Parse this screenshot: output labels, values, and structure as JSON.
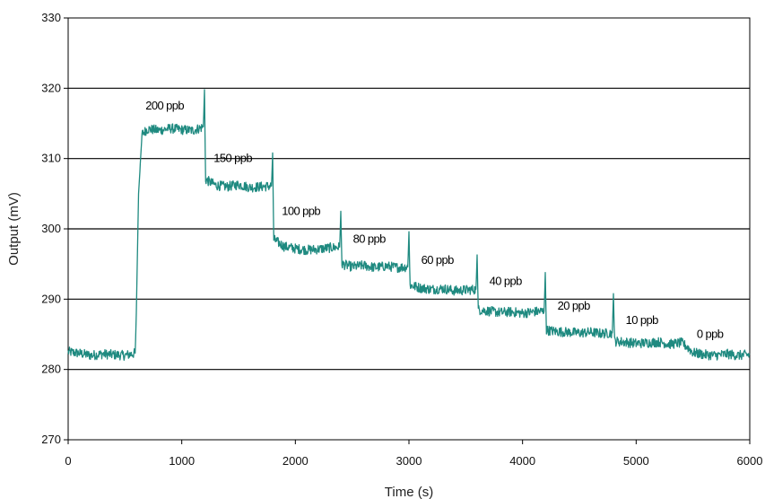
{
  "chart_data": {
    "type": "line",
    "title": "",
    "xlabel": "Time (s)",
    "ylabel": "Output (mV)",
    "xlim": [
      0,
      6000
    ],
    "ylim": [
      270,
      330
    ],
    "x_ticks": [
      0,
      1000,
      2000,
      3000,
      4000,
      5000,
      6000
    ],
    "y_ticks": [
      270,
      280,
      290,
      300,
      310,
      320,
      330
    ],
    "grid": "horizontal",
    "legend": "none",
    "line_color": "#1f8a80",
    "series": [
      {
        "x": [
          0,
          100,
          200,
          300,
          400,
          500,
          590,
          600,
          620,
          650,
          700,
          800,
          900,
          1000,
          1100,
          1190,
          1200,
          1210,
          1300,
          1400,
          1500,
          1600,
          1700,
          1790,
          1800,
          1810,
          1900,
          2000,
          2100,
          2200,
          2300,
          2390,
          2400,
          2410,
          2500,
          2600,
          2700,
          2800,
          2900,
          2990,
          3000,
          3010,
          3100,
          3200,
          3300,
          3400,
          3500,
          3590,
          3600,
          3610,
          3700,
          3800,
          3900,
          4000,
          4100,
          4190,
          4200,
          4210,
          4300,
          4400,
          4500,
          4600,
          4700,
          4790,
          4800,
          4810,
          4900,
          5000,
          5100,
          5200,
          5300,
          5400,
          5450,
          5500,
          5600,
          5700,
          5800,
          5900,
          6000
        ],
        "values": [
          282.5,
          282.3,
          282.0,
          282.2,
          282.1,
          282.0,
          282.3,
          288.0,
          305.0,
          313.5,
          314.2,
          314.0,
          314.3,
          314.1,
          314.0,
          314.5,
          319.8,
          307.0,
          306.2,
          306.0,
          306.3,
          305.9,
          306.0,
          306.1,
          310.8,
          298.5,
          297.5,
          297.2,
          297.0,
          297.1,
          297.3,
          297.4,
          302.5,
          295.0,
          294.6,
          294.8,
          294.5,
          294.7,
          294.5,
          294.6,
          299.6,
          292.0,
          291.6,
          291.4,
          291.5,
          291.2,
          291.3,
          291.4,
          296.3,
          288.5,
          288.3,
          288.1,
          288.2,
          288.0,
          288.2,
          288.3,
          293.8,
          285.6,
          285.4,
          285.3,
          285.2,
          285.3,
          285.1,
          285.2,
          290.8,
          284.0,
          283.9,
          283.7,
          283.8,
          283.9,
          283.6,
          283.8,
          283.2,
          282.4,
          282.1,
          282.0,
          282.2,
          282.0,
          282.1
        ]
      }
    ],
    "annotations": [
      {
        "text": "200 ppb",
        "x": 850,
        "y": 317
      },
      {
        "text": "150 ppb",
        "x": 1450,
        "y": 309.5
      },
      {
        "text": "100 ppb",
        "x": 2050,
        "y": 302
      },
      {
        "text": "80 ppb",
        "x": 2650,
        "y": 298
      },
      {
        "text": "60 ppb",
        "x": 3250,
        "y": 295
      },
      {
        "text": "40 ppb",
        "x": 3850,
        "y": 292
      },
      {
        "text": "20 ppb",
        "x": 4450,
        "y": 288.5
      },
      {
        "text": "10 ppb",
        "x": 5050,
        "y": 286.5
      },
      {
        "text": "0 ppb",
        "x": 5650,
        "y": 284.5
      }
    ]
  }
}
